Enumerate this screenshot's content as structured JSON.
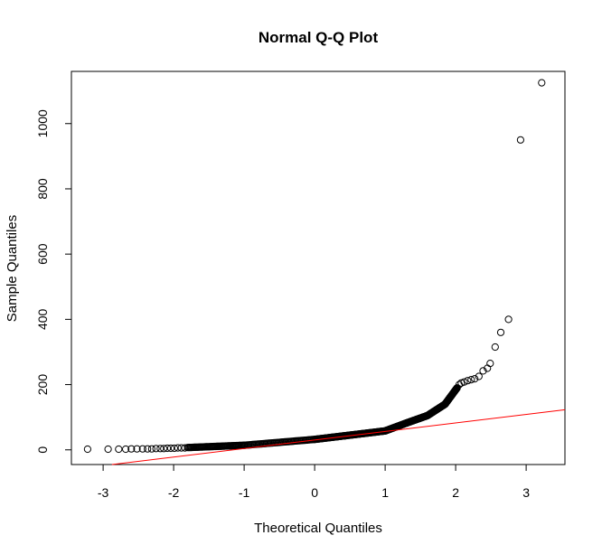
{
  "chart_data": {
    "type": "scatter",
    "title": "Normal Q-Q Plot",
    "xlabel": "Theoretical Quantiles",
    "ylabel": "Sample Quantiles",
    "xlim": [
      -3.45,
      3.55
    ],
    "ylim": [
      -45,
      1160
    ],
    "x_ticks": [
      -3,
      -2,
      -1,
      0,
      1,
      2,
      3
    ],
    "y_ticks": [
      0,
      200,
      400,
      600,
      800,
      1000
    ],
    "grid": false,
    "legend": "none",
    "colors": {
      "points": "#000000",
      "reference_line": "#ff0000",
      "frame": "#000000"
    },
    "reference_line": {
      "x": [
        -3.45,
        3.55
      ],
      "y": [
        -60,
        123
      ]
    },
    "points": [
      [
        -3.22,
        2
      ],
      [
        -2.93,
        2
      ],
      [
        -2.78,
        2
      ],
      [
        -2.68,
        2
      ],
      [
        -2.6,
        3
      ],
      [
        -2.52,
        3
      ],
      [
        -2.44,
        3
      ],
      [
        -2.37,
        3
      ],
      [
        -2.31,
        3
      ],
      [
        -2.25,
        4
      ],
      [
        -2.19,
        4
      ],
      [
        -2.14,
        4
      ],
      [
        -2.09,
        5
      ],
      [
        -2.04,
        5
      ],
      [
        -1.99,
        5
      ],
      [
        -1.94,
        6
      ],
      [
        -1.89,
        6
      ],
      [
        -1.84,
        6
      ],
      [
        2.05,
        200
      ],
      [
        2.08,
        205
      ],
      [
        2.12,
        208
      ],
      [
        2.17,
        212
      ],
      [
        2.22,
        215
      ],
      [
        2.27,
        218
      ],
      [
        2.33,
        225
      ],
      [
        2.39,
        242
      ],
      [
        2.45,
        250
      ],
      [
        2.49,
        265
      ],
      [
        2.56,
        315
      ],
      [
        2.64,
        360
      ],
      [
        2.75,
        400
      ],
      [
        2.92,
        950
      ],
      [
        3.22,
        1125
      ]
    ],
    "dense_segments": [
      {
        "x": [
          -1.8,
          -1.0
        ],
        "y": [
          7,
          14
        ]
      },
      {
        "x": [
          -1.0,
          0.0
        ],
        "y": [
          14,
          32
        ]
      },
      {
        "x": [
          0.0,
          0.5
        ],
        "y": [
          32,
          45
        ]
      },
      {
        "x": [
          0.5,
          1.0
        ],
        "y": [
          45,
          58
        ]
      },
      {
        "x": [
          1.0,
          1.3
        ],
        "y": [
          58,
          82
        ]
      },
      {
        "x": [
          1.3,
          1.6
        ],
        "y": [
          82,
          105
        ]
      },
      {
        "x": [
          1.6,
          1.85
        ],
        "y": [
          105,
          140
        ]
      },
      {
        "x": [
          1.85,
          2.02
        ],
        "y": [
          140,
          190
        ]
      }
    ]
  }
}
